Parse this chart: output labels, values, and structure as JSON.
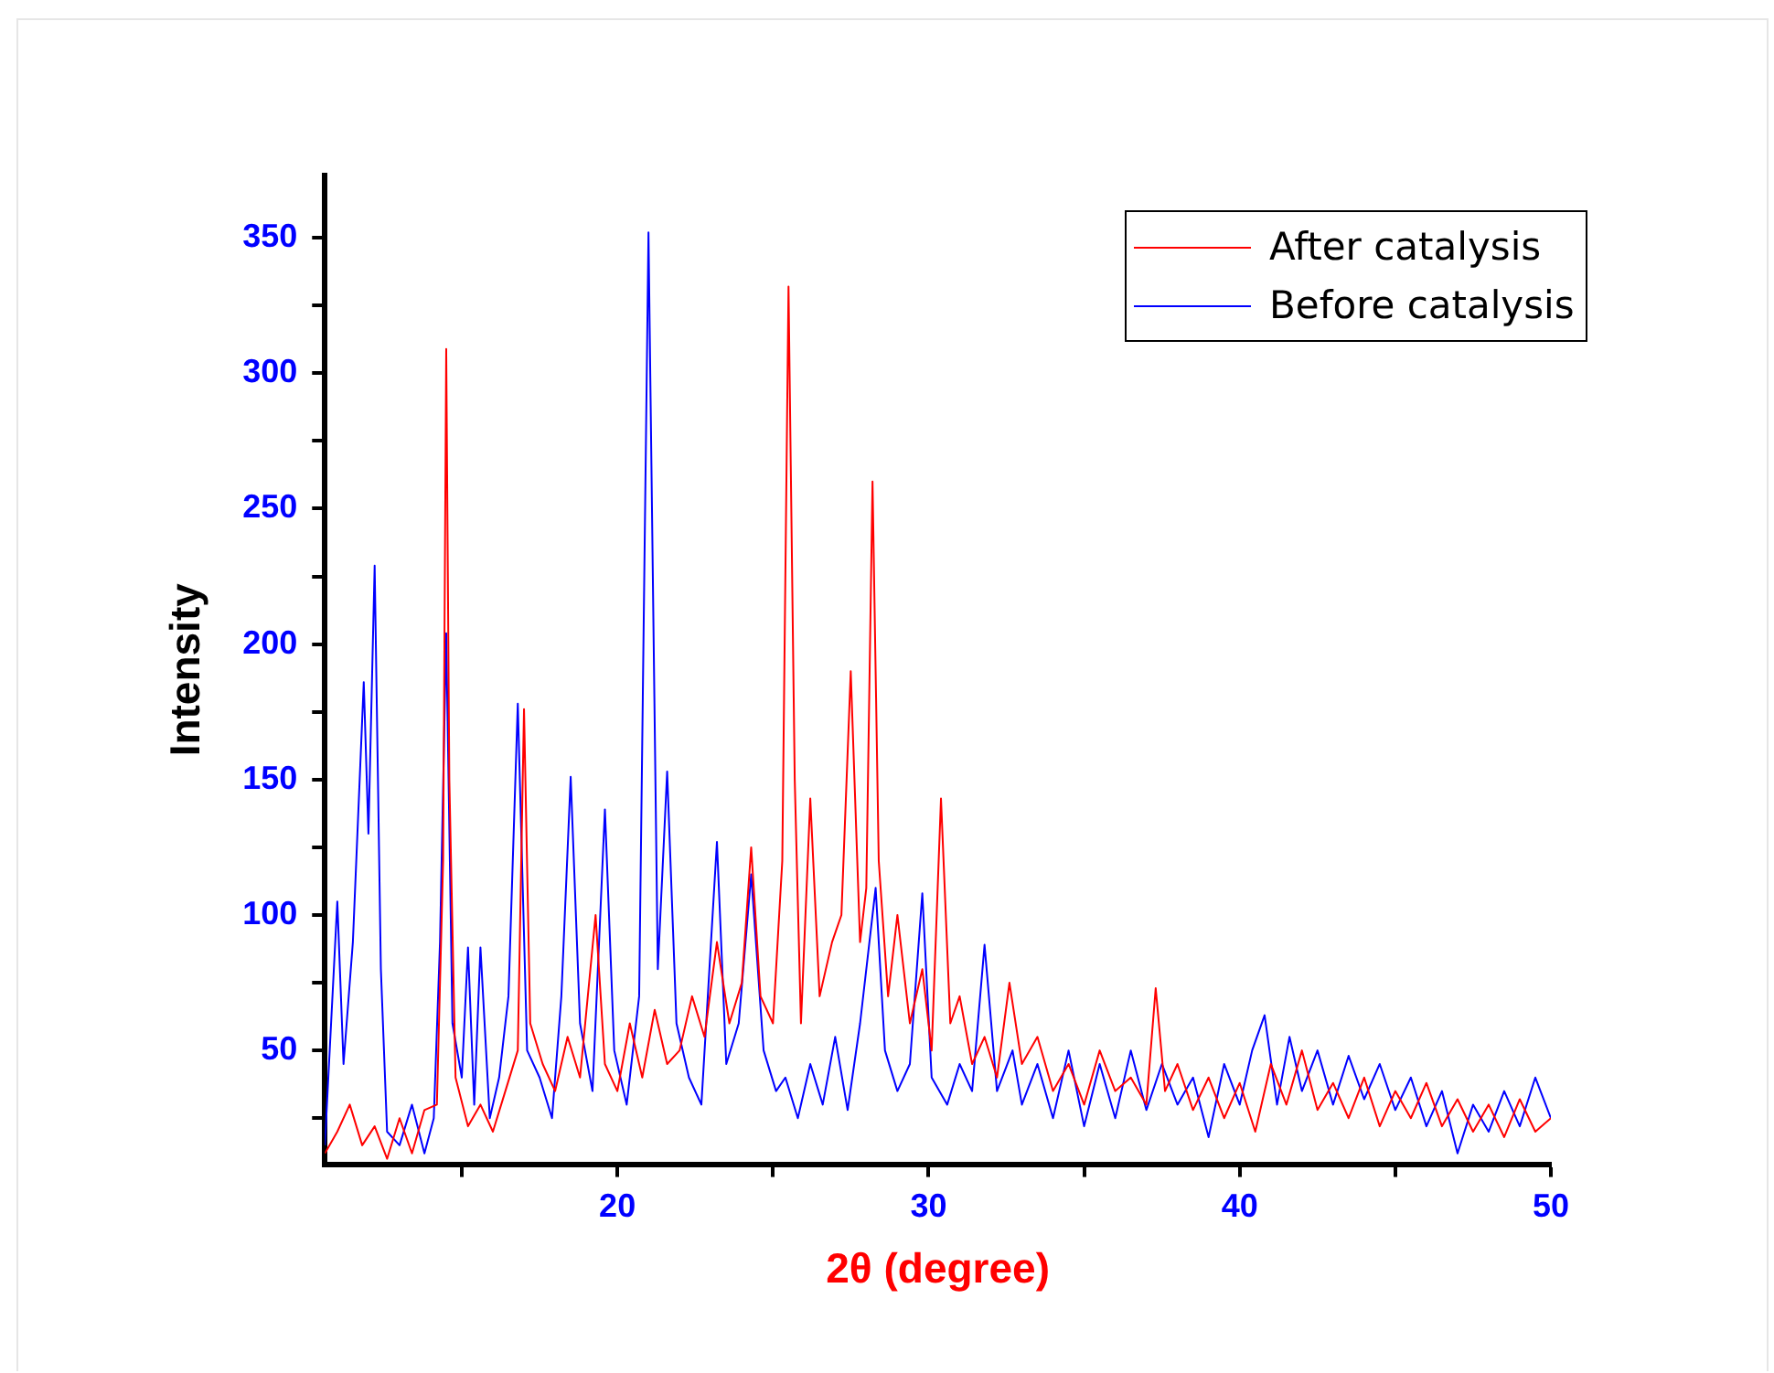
{
  "chart_data": {
    "type": "line",
    "xlabel": "2θ (degree)",
    "ylabel": "Intensity",
    "xlim": [
      10.6,
      50
    ],
    "ylim": [
      8,
      373
    ],
    "xticks": [
      {
        "value": 15,
        "label": null
      },
      20,
      {
        "value": 25,
        "label": null
      },
      30,
      {
        "value": 35,
        "label": null
      },
      40,
      {
        "value": 45,
        "label": null
      },
      50
    ],
    "yticks": [
      {
        "value": 25,
        "label": null
      },
      50,
      {
        "value": 75,
        "label": null
      },
      100,
      {
        "value": 125,
        "label": null
      },
      150,
      {
        "value": 175,
        "label": null
      },
      200,
      {
        "value": 225,
        "label": null
      },
      250,
      {
        "value": 275,
        "label": null
      },
      300,
      {
        "value": 325,
        "label": null
      },
      350
    ],
    "legend": "top right",
    "series": [
      {
        "name": "After catalysis",
        "color": "#ff0000",
        "x": [
          10.6,
          11,
          11.4,
          11.8,
          12.2,
          12.6,
          13,
          13.4,
          13.8,
          14.2,
          14.4,
          14.5,
          14.6,
          14.8,
          15.2,
          15.6,
          16,
          16.4,
          16.8,
          17,
          17.2,
          17.6,
          18,
          18.4,
          18.8,
          19.3,
          19.6,
          20,
          20.4,
          20.8,
          21.2,
          21.6,
          22,
          22.4,
          22.8,
          23.2,
          23.6,
          24,
          24.3,
          24.6,
          25,
          25.3,
          25.5,
          25.7,
          25.9,
          26.2,
          26.5,
          26.9,
          27.2,
          27.5,
          27.8,
          28,
          28.2,
          28.4,
          28.7,
          29,
          29.4,
          29.8,
          30.1,
          30.4,
          30.7,
          31,
          31.4,
          31.8,
          32.2,
          32.6,
          33,
          33.5,
          34,
          34.5,
          35,
          35.5,
          36,
          36.5,
          37,
          37.3,
          37.6,
          38,
          38.5,
          39,
          39.5,
          40,
          40.5,
          41,
          41.5,
          42,
          42.5,
          43,
          43.5,
          44,
          44.5,
          45,
          45.5,
          46,
          46.5,
          47,
          47.5,
          48,
          48.5,
          49,
          49.5,
          50
        ],
        "values": [
          12,
          20,
          30,
          15,
          22,
          10,
          25,
          12,
          28,
          30,
          120,
          309,
          150,
          40,
          22,
          30,
          20,
          35,
          50,
          176,
          60,
          45,
          35,
          55,
          40,
          100,
          45,
          35,
          60,
          40,
          65,
          45,
          50,
          70,
          55,
          90,
          60,
          75,
          125,
          70,
          60,
          120,
          332,
          150,
          60,
          143,
          70,
          90,
          100,
          190,
          90,
          110,
          260,
          120,
          70,
          100,
          60,
          80,
          50,
          143,
          60,
          70,
          45,
          55,
          40,
          75,
          45,
          55,
          35,
          45,
          30,
          50,
          35,
          40,
          30,
          73,
          35,
          45,
          28,
          40,
          25,
          38,
          20,
          45,
          30,
          50,
          28,
          38,
          25,
          40,
          22,
          35,
          25,
          38,
          22,
          32,
          20,
          30,
          18,
          32,
          20,
          25
        ]
      },
      {
        "name": "Before catalysis",
        "color": "#0000ff",
        "x": [
          10.6,
          10.8,
          11,
          11.2,
          11.5,
          11.85,
          12,
          12.2,
          12.4,
          12.6,
          13,
          13.4,
          13.8,
          14.1,
          14.3,
          14.5,
          14.7,
          15,
          15.2,
          15.4,
          15.6,
          15.9,
          16.2,
          16.5,
          16.8,
          17.1,
          17.5,
          17.9,
          18.2,
          18.5,
          18.8,
          19.2,
          19.6,
          19.9,
          20.3,
          20.7,
          21,
          21.3,
          21.6,
          21.9,
          22.3,
          22.7,
          23.2,
          23.5,
          23.9,
          24.3,
          24.7,
          25.1,
          25.4,
          25.8,
          26.2,
          26.6,
          27,
          27.4,
          27.8,
          28.3,
          28.6,
          29,
          29.4,
          29.8,
          30.1,
          30.6,
          31,
          31.4,
          31.8,
          32.2,
          32.7,
          33,
          33.5,
          34,
          34.5,
          35,
          35.5,
          36,
          36.5,
          37,
          37.5,
          38,
          38.5,
          39,
          39.5,
          40,
          40.4,
          40.8,
          41.2,
          41.6,
          42,
          42.5,
          43,
          43.5,
          44,
          44.5,
          45,
          45.5,
          46,
          46.5,
          47,
          47.5,
          48,
          48.5,
          49,
          49.5,
          50
        ],
        "values": [
          15,
          60,
          105,
          45,
          90,
          186,
          130,
          229,
          80,
          20,
          15,
          30,
          12,
          25,
          90,
          204,
          60,
          40,
          88,
          30,
          88,
          25,
          40,
          70,
          178,
          50,
          40,
          25,
          70,
          151,
          60,
          35,
          139,
          50,
          30,
          70,
          352,
          80,
          153,
          60,
          40,
          30,
          127,
          45,
          60,
          115,
          50,
          35,
          40,
          25,
          45,
          30,
          55,
          28,
          60,
          110,
          50,
          35,
          45,
          108,
          40,
          30,
          45,
          35,
          89,
          35,
          50,
          30,
          45,
          25,
          50,
          22,
          45,
          25,
          50,
          28,
          45,
          30,
          40,
          18,
          45,
          30,
          50,
          63,
          30,
          55,
          35,
          50,
          30,
          48,
          32,
          45,
          28,
          40,
          22,
          35,
          12,
          30,
          20,
          35,
          22,
          40,
          25
        ]
      }
    ]
  }
}
